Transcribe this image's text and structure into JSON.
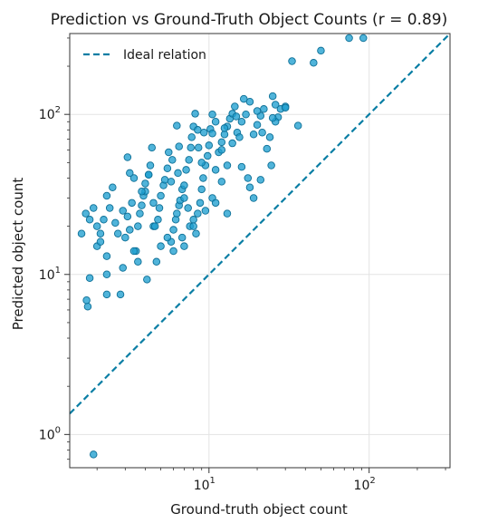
{
  "chart_data": {
    "type": "scatter",
    "title": "Prediction vs Ground-Truth Object Counts (r = 0.89)",
    "xlabel": "Ground-truth object count",
    "ylabel": "Predicted object count",
    "xscale": "log",
    "yscale": "log",
    "xlim": [
      1.35,
      320
    ],
    "ylim": [
      0.62,
      320
    ],
    "xticks": [
      {
        "base": "10",
        "exp": "1",
        "value": 10
      },
      {
        "base": "10",
        "exp": "2",
        "value": 100
      }
    ],
    "yticks": [
      {
        "base": "10",
        "exp": "0",
        "value": 1
      },
      {
        "base": "10",
        "exp": "1",
        "value": 10
      },
      {
        "base": "10",
        "exp": "2",
        "value": 100
      }
    ],
    "grid": true,
    "legend": {
      "placement": "top-left",
      "entries": [
        {
          "label": "Ideal relation",
          "style": "dashed",
          "color": "#0a7ea4"
        }
      ]
    },
    "point_color": "#1f9fd0",
    "point_edge_color": "#0d6f96",
    "reference_line": {
      "x": [
        1.35,
        320
      ],
      "y": [
        1.35,
        320
      ]
    },
    "points": [
      [
        1.9,
        0.75
      ],
      [
        1.75,
        6.3
      ],
      [
        1.72,
        6.9
      ],
      [
        1.8,
        9.5
      ],
      [
        2.1,
        18
      ],
      [
        2.0,
        15
      ],
      [
        1.6,
        18
      ],
      [
        1.8,
        22
      ],
      [
        1.7,
        24
      ],
      [
        1.9,
        26
      ],
      [
        2.0,
        20
      ],
      [
        2.2,
        22
      ],
      [
        2.1,
        16
      ],
      [
        2.3,
        31
      ],
      [
        2.5,
        35
      ],
      [
        2.4,
        26
      ],
      [
        2.6,
        21
      ],
      [
        2.7,
        18
      ],
      [
        2.3,
        10
      ],
      [
        2.3,
        7.5
      ],
      [
        2.8,
        7.5
      ],
      [
        2.9,
        11
      ],
      [
        3.0,
        17
      ],
      [
        3.2,
        19
      ],
      [
        3.1,
        23
      ],
      [
        3.3,
        28
      ],
      [
        3.4,
        40
      ],
      [
        3.2,
        43
      ],
      [
        3.1,
        54
      ],
      [
        3.5,
        14
      ],
      [
        3.6,
        20
      ],
      [
        3.7,
        24
      ],
      [
        3.8,
        27
      ],
      [
        3.9,
        31
      ],
      [
        4.0,
        37
      ],
      [
        4.2,
        42
      ],
      [
        4.3,
        48
      ],
      [
        4.4,
        62
      ],
      [
        4.5,
        20
      ],
      [
        4.6,
        20
      ],
      [
        4.8,
        22
      ],
      [
        4.9,
        26
      ],
      [
        5.0,
        31
      ],
      [
        5.2,
        36
      ],
      [
        5.3,
        39
      ],
      [
        5.5,
        46
      ],
      [
        5.6,
        58
      ],
      [
        3.6,
        12
      ],
      [
        4.1,
        9.3
      ],
      [
        4.7,
        12
      ],
      [
        5.8,
        16
      ],
      [
        6.0,
        19
      ],
      [
        6.2,
        22
      ],
      [
        6.3,
        24
      ],
      [
        6.5,
        27
      ],
      [
        6.6,
        29
      ],
      [
        6.8,
        34
      ],
      [
        7.0,
        36
      ],
      [
        7.2,
        45
      ],
      [
        7.5,
        52
      ],
      [
        7.7,
        62
      ],
      [
        7.8,
        72
      ],
      [
        8.0,
        84
      ],
      [
        8.2,
        101
      ],
      [
        6.5,
        63
      ],
      [
        5.9,
        52
      ],
      [
        6.4,
        43
      ],
      [
        7.0,
        30
      ],
      [
        7.4,
        26
      ],
      [
        7.6,
        20
      ],
      [
        8.0,
        22
      ],
      [
        8.3,
        18
      ],
      [
        8.5,
        24
      ],
      [
        8.8,
        28
      ],
      [
        9.0,
        34
      ],
      [
        9.2,
        40
      ],
      [
        9.5,
        48
      ],
      [
        9.8,
        55
      ],
      [
        10.0,
        64
      ],
      [
        8.6,
        62
      ],
      [
        9.3,
        77
      ],
      [
        10.2,
        81
      ],
      [
        10.5,
        100
      ],
      [
        11.0,
        45
      ],
      [
        11.5,
        58
      ],
      [
        12.0,
        67
      ],
      [
        12.5,
        75
      ],
      [
        13.0,
        84
      ],
      [
        13.5,
        94
      ],
      [
        14.0,
        101
      ],
      [
        14.5,
        112
      ],
      [
        15.0,
        77
      ],
      [
        15.5,
        72
      ],
      [
        16.0,
        90
      ],
      [
        17.0,
        100
      ],
      [
        18.0,
        120
      ],
      [
        19.0,
        75
      ],
      [
        20.0,
        86
      ],
      [
        21.0,
        98
      ],
      [
        22.0,
        108
      ],
      [
        23.0,
        61
      ],
      [
        24.0,
        72
      ],
      [
        25.0,
        130
      ],
      [
        26.0,
        115
      ],
      [
        27.0,
        96
      ],
      [
        28.0,
        108
      ],
      [
        16.0,
        47
      ],
      [
        17.5,
        40
      ],
      [
        19.0,
        30
      ],
      [
        21.0,
        39
      ],
      [
        24.5,
        48
      ],
      [
        13.0,
        48
      ],
      [
        12.0,
        38
      ],
      [
        10.5,
        30
      ],
      [
        9.5,
        25
      ],
      [
        8.0,
        20
      ],
      [
        6.8,
        17
      ],
      [
        5.5,
        17
      ],
      [
        5.0,
        15
      ],
      [
        4.5,
        28
      ],
      [
        4.0,
        33
      ],
      [
        6.3,
        85
      ],
      [
        8.5,
        80
      ],
      [
        10.5,
        76
      ],
      [
        12.5,
        82
      ],
      [
        14.8,
        97
      ],
      [
        36,
        85
      ],
      [
        30,
        112
      ],
      [
        33,
        215
      ],
      [
        45,
        210
      ],
      [
        50,
        250
      ],
      [
        75,
        300
      ],
      [
        92,
        300
      ],
      [
        13,
        24
      ],
      [
        11,
        28
      ],
      [
        18,
        35
      ],
      [
        7.0,
        15
      ],
      [
        6.0,
        14
      ],
      [
        3.4,
        14
      ],
      [
        2.3,
        13
      ],
      [
        2.9,
        25
      ],
      [
        3.8,
        33
      ],
      [
        4.2,
        42
      ],
      [
        5.8,
        38
      ],
      [
        9.0,
        50
      ],
      [
        14.0,
        66
      ],
      [
        21.5,
        77
      ],
      [
        26.0,
        90
      ],
      [
        30.0,
        110
      ],
      [
        16.5,
        125
      ],
      [
        20.0,
        105
      ],
      [
        25.0,
        95
      ],
      [
        11.0,
        90
      ],
      [
        12.0,
        60
      ]
    ]
  }
}
